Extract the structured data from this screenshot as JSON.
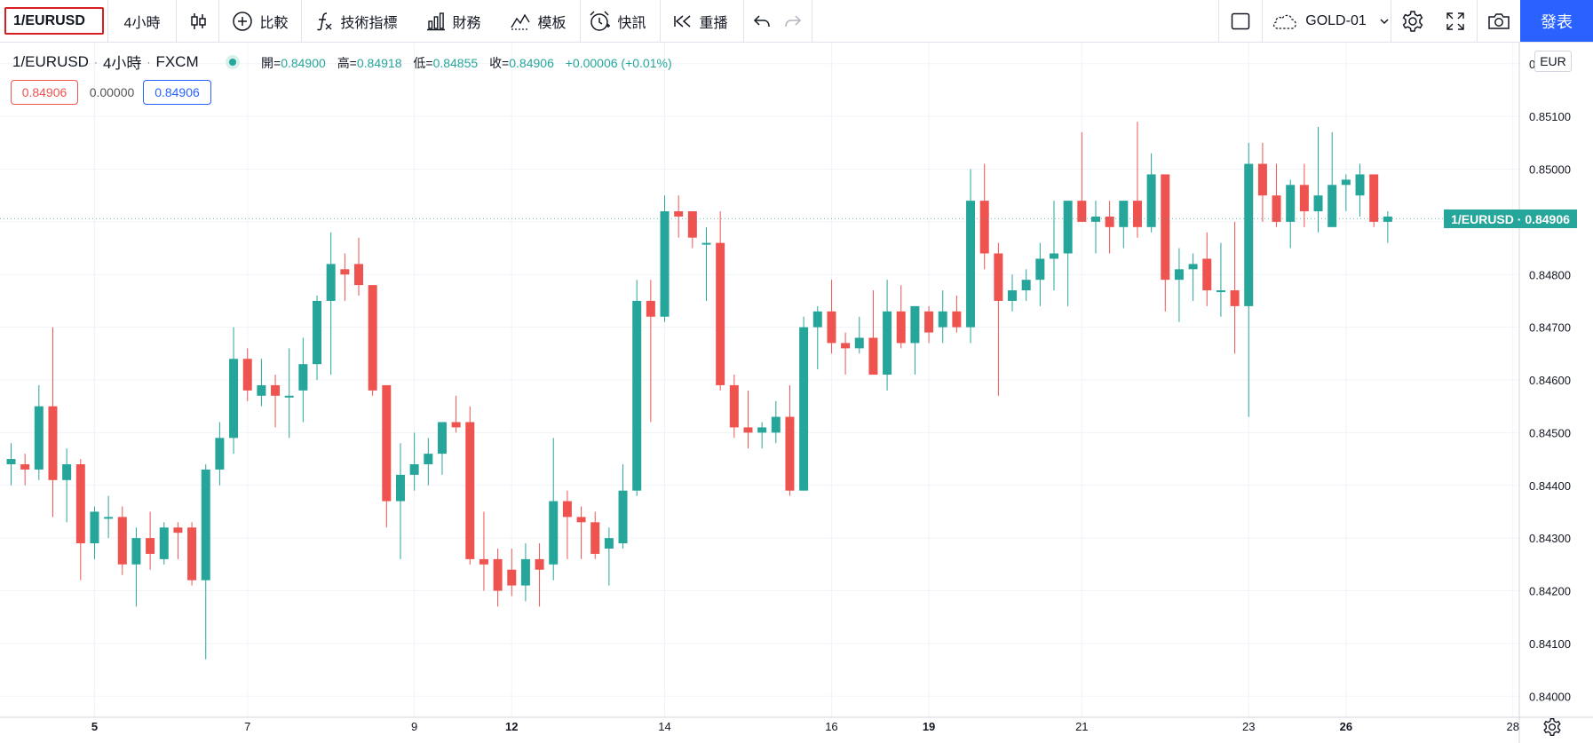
{
  "toolbar": {
    "symbol": "1/EURUSD",
    "interval": "4小時",
    "compare_label": "比較",
    "indicators_label": "技術指標",
    "financials_label": "財務",
    "templates_label": "模板",
    "alert_label": "快訊",
    "replay_label": "重播",
    "layout_name": "GOLD-01",
    "publish_label": "發表"
  },
  "legend": {
    "symbol": "1/EURUSD",
    "interval": "4小時",
    "exchange": "FXCM",
    "open_label": "開=",
    "open": "0.84900",
    "high_label": "高=",
    "high": "0.84918",
    "low_label": "低=",
    "low": "0.84855",
    "close_label": "收=",
    "close": "0.84906",
    "change": "+0.00006 (+0.01%)",
    "bid": "0.84906",
    "spread": "0.00000",
    "ask": "0.84906"
  },
  "axis": {
    "currency": "EUR",
    "current_label": "1/EURUSD · 0.84906"
  },
  "colors": {
    "up": "#26a69a",
    "down": "#ef5350",
    "grid": "#f0f3fa",
    "accent": "#2962ff"
  },
  "chart_data": {
    "type": "candlestick",
    "grid": true,
    "ylim": [
      0.8396,
      0.8524
    ],
    "y_ticks": [
      "0.85200",
      "0.85100",
      "0.85000",
      "0.84900",
      "0.84800",
      "0.84700",
      "0.84600",
      "0.84500",
      "0.84400",
      "0.84300",
      "0.84200",
      "0.84100",
      "0.84000"
    ],
    "x_ticks": [
      {
        "label": "5",
        "bold": true,
        "bar": 6
      },
      {
        "label": "7",
        "bold": false,
        "bar": 17
      },
      {
        "label": "9",
        "bold": false,
        "bar": 29
      },
      {
        "label": "12",
        "bold": true,
        "bar": 36
      },
      {
        "label": "14",
        "bold": false,
        "bar": 47
      },
      {
        "label": "16",
        "bold": false,
        "bar": 59
      },
      {
        "label": "19",
        "bold": true,
        "bar": 66
      },
      {
        "label": "21",
        "bold": false,
        "bar": 77
      },
      {
        "label": "23",
        "bold": false,
        "bar": 89
      },
      {
        "label": "26",
        "bold": true,
        "bar": 96
      },
      {
        "label": "28",
        "bold": false,
        "bar": 108
      }
    ],
    "current_price": 0.84906,
    "candles": [
      [
        0.8444,
        0.8448,
        0.844,
        0.8445
      ],
      [
        0.8444,
        0.8446,
        0.844,
        0.8443
      ],
      [
        0.8443,
        0.8459,
        0.8441,
        0.8455
      ],
      [
        0.8455,
        0.847,
        0.8434,
        0.8441
      ],
      [
        0.8441,
        0.8447,
        0.8433,
        0.8444
      ],
      [
        0.8444,
        0.8445,
        0.8422,
        0.8429
      ],
      [
        0.8429,
        0.8436,
        0.8426,
        0.8435
      ],
      [
        0.8434,
        0.8438,
        0.843,
        0.8434
      ],
      [
        0.8434,
        0.8436,
        0.8423,
        0.8425
      ],
      [
        0.8425,
        0.8432,
        0.8417,
        0.843
      ],
      [
        0.843,
        0.8435,
        0.8424,
        0.8427
      ],
      [
        0.8426,
        0.8433,
        0.8425,
        0.8432
      ],
      [
        0.8432,
        0.8433,
        0.8426,
        0.8431
      ],
      [
        0.8432,
        0.8433,
        0.8421,
        0.8422
      ],
      [
        0.8422,
        0.8444,
        0.8407,
        0.8443
      ],
      [
        0.8443,
        0.8452,
        0.844,
        0.8449
      ],
      [
        0.8449,
        0.847,
        0.8446,
        0.8464
      ],
      [
        0.8464,
        0.8466,
        0.8456,
        0.8458
      ],
      [
        0.8457,
        0.8464,
        0.8455,
        0.8459
      ],
      [
        0.8459,
        0.8461,
        0.8451,
        0.8457
      ],
      [
        0.8457,
        0.8466,
        0.8449,
        0.8457
      ],
      [
        0.8458,
        0.8468,
        0.8452,
        0.8463
      ],
      [
        0.8463,
        0.8476,
        0.846,
        0.8475
      ],
      [
        0.8475,
        0.8488,
        0.8461,
        0.8482
      ],
      [
        0.8481,
        0.8484,
        0.8475,
        0.848
      ],
      [
        0.8482,
        0.8487,
        0.8476,
        0.8478
      ],
      [
        0.8478,
        0.8478,
        0.8457,
        0.8458
      ],
      [
        0.8459,
        0.8459,
        0.8432,
        0.8437
      ],
      [
        0.8437,
        0.8448,
        0.8426,
        0.8442
      ],
      [
        0.8442,
        0.845,
        0.8439,
        0.8444
      ],
      [
        0.8444,
        0.8449,
        0.844,
        0.8446
      ],
      [
        0.8446,
        0.8452,
        0.8442,
        0.8452
      ],
      [
        0.8452,
        0.8457,
        0.845,
        0.8451
      ],
      [
        0.8452,
        0.8455,
        0.8425,
        0.8426
      ],
      [
        0.8426,
        0.8435,
        0.842,
        0.8425
      ],
      [
        0.8426,
        0.8428,
        0.8417,
        0.842
      ],
      [
        0.8424,
        0.8428,
        0.8419,
        0.8421
      ],
      [
        0.8421,
        0.8429,
        0.8418,
        0.8426
      ],
      [
        0.8426,
        0.8429,
        0.8417,
        0.8424
      ],
      [
        0.8425,
        0.8449,
        0.8422,
        0.8437
      ],
      [
        0.8437,
        0.8439,
        0.8426,
        0.8434
      ],
      [
        0.8434,
        0.8436,
        0.8426,
        0.8433
      ],
      [
        0.8433,
        0.8435,
        0.8426,
        0.8427
      ],
      [
        0.8428,
        0.8432,
        0.8421,
        0.843
      ],
      [
        0.8429,
        0.8444,
        0.8428,
        0.8439
      ],
      [
        0.8439,
        0.8479,
        0.8438,
        0.8475
      ],
      [
        0.8475,
        0.8479,
        0.8452,
        0.8472
      ],
      [
        0.8472,
        0.8495,
        0.8471,
        0.8492
      ],
      [
        0.8492,
        0.8495,
        0.8487,
        0.8491
      ],
      [
        0.8492,
        0.8492,
        0.8485,
        0.8487
      ],
      [
        0.8486,
        0.8489,
        0.8475,
        0.8486
      ],
      [
        0.8486,
        0.8492,
        0.8458,
        0.8459
      ],
      [
        0.8459,
        0.8461,
        0.8449,
        0.8451
      ],
      [
        0.8451,
        0.8458,
        0.8447,
        0.845
      ],
      [
        0.845,
        0.8452,
        0.8447,
        0.8451
      ],
      [
        0.845,
        0.8456,
        0.8448,
        0.8453
      ],
      [
        0.8453,
        0.8459,
        0.8438,
        0.8439
      ],
      [
        0.8439,
        0.8472,
        0.8439,
        0.847
      ],
      [
        0.847,
        0.8474,
        0.8462,
        0.8473
      ],
      [
        0.8473,
        0.8479,
        0.8465,
        0.8467
      ],
      [
        0.8467,
        0.8469,
        0.8461,
        0.8466
      ],
      [
        0.8466,
        0.8472,
        0.8465,
        0.8468
      ],
      [
        0.8468,
        0.8477,
        0.8461,
        0.8461
      ],
      [
        0.8461,
        0.8479,
        0.8458,
        0.8473
      ],
      [
        0.8473,
        0.8478,
        0.8466,
        0.8467
      ],
      [
        0.8467,
        0.8474,
        0.8461,
        0.8474
      ],
      [
        0.8473,
        0.8474,
        0.8467,
        0.8469
      ],
      [
        0.847,
        0.8477,
        0.8467,
        0.8473
      ],
      [
        0.8473,
        0.8476,
        0.8469,
        0.847
      ],
      [
        0.847,
        0.85,
        0.8467,
        0.8494
      ],
      [
        0.8494,
        0.8501,
        0.8481,
        0.8484
      ],
      [
        0.8484,
        0.8486,
        0.8457,
        0.8475
      ],
      [
        0.8475,
        0.848,
        0.8473,
        0.8477
      ],
      [
        0.8477,
        0.8481,
        0.8475,
        0.8479
      ],
      [
        0.8479,
        0.8486,
        0.8474,
        0.8483
      ],
      [
        0.8483,
        0.8494,
        0.8477,
        0.8484
      ],
      [
        0.8484,
        0.8494,
        0.8474,
        0.8494
      ],
      [
        0.8494,
        0.8507,
        0.849,
        0.849
      ],
      [
        0.849,
        0.8494,
        0.8484,
        0.8491
      ],
      [
        0.8491,
        0.8494,
        0.8484,
        0.8489
      ],
      [
        0.8489,
        0.8494,
        0.8485,
        0.8494
      ],
      [
        0.8494,
        0.8509,
        0.8487,
        0.8489
      ],
      [
        0.8489,
        0.8503,
        0.8488,
        0.8499
      ],
      [
        0.8499,
        0.8499,
        0.8473,
        0.8479
      ],
      [
        0.8479,
        0.8485,
        0.8471,
        0.8481
      ],
      [
        0.8481,
        0.8484,
        0.8475,
        0.8482
      ],
      [
        0.8483,
        0.8488,
        0.8474,
        0.8477
      ],
      [
        0.8477,
        0.8486,
        0.8472,
        0.8477
      ],
      [
        0.8477,
        0.849,
        0.8465,
        0.8474
      ],
      [
        0.8474,
        0.8505,
        0.8453,
        0.8501
      ],
      [
        0.8501,
        0.8505,
        0.849,
        0.8495
      ],
      [
        0.8495,
        0.8501,
        0.8489,
        0.849
      ],
      [
        0.849,
        0.8498,
        0.8485,
        0.8497
      ],
      [
        0.8497,
        0.8501,
        0.8489,
        0.8492
      ],
      [
        0.8492,
        0.8508,
        0.8488,
        0.8495
      ],
      [
        0.8489,
        0.8507,
        0.8489,
        0.8497
      ],
      [
        0.8497,
        0.8499,
        0.8492,
        0.8498
      ],
      [
        0.8495,
        0.8501,
        0.8491,
        0.8499
      ],
      [
        0.8499,
        0.8499,
        0.8489,
        0.849
      ],
      [
        0.849,
        0.8492,
        0.8486,
        0.8491
      ]
    ]
  }
}
